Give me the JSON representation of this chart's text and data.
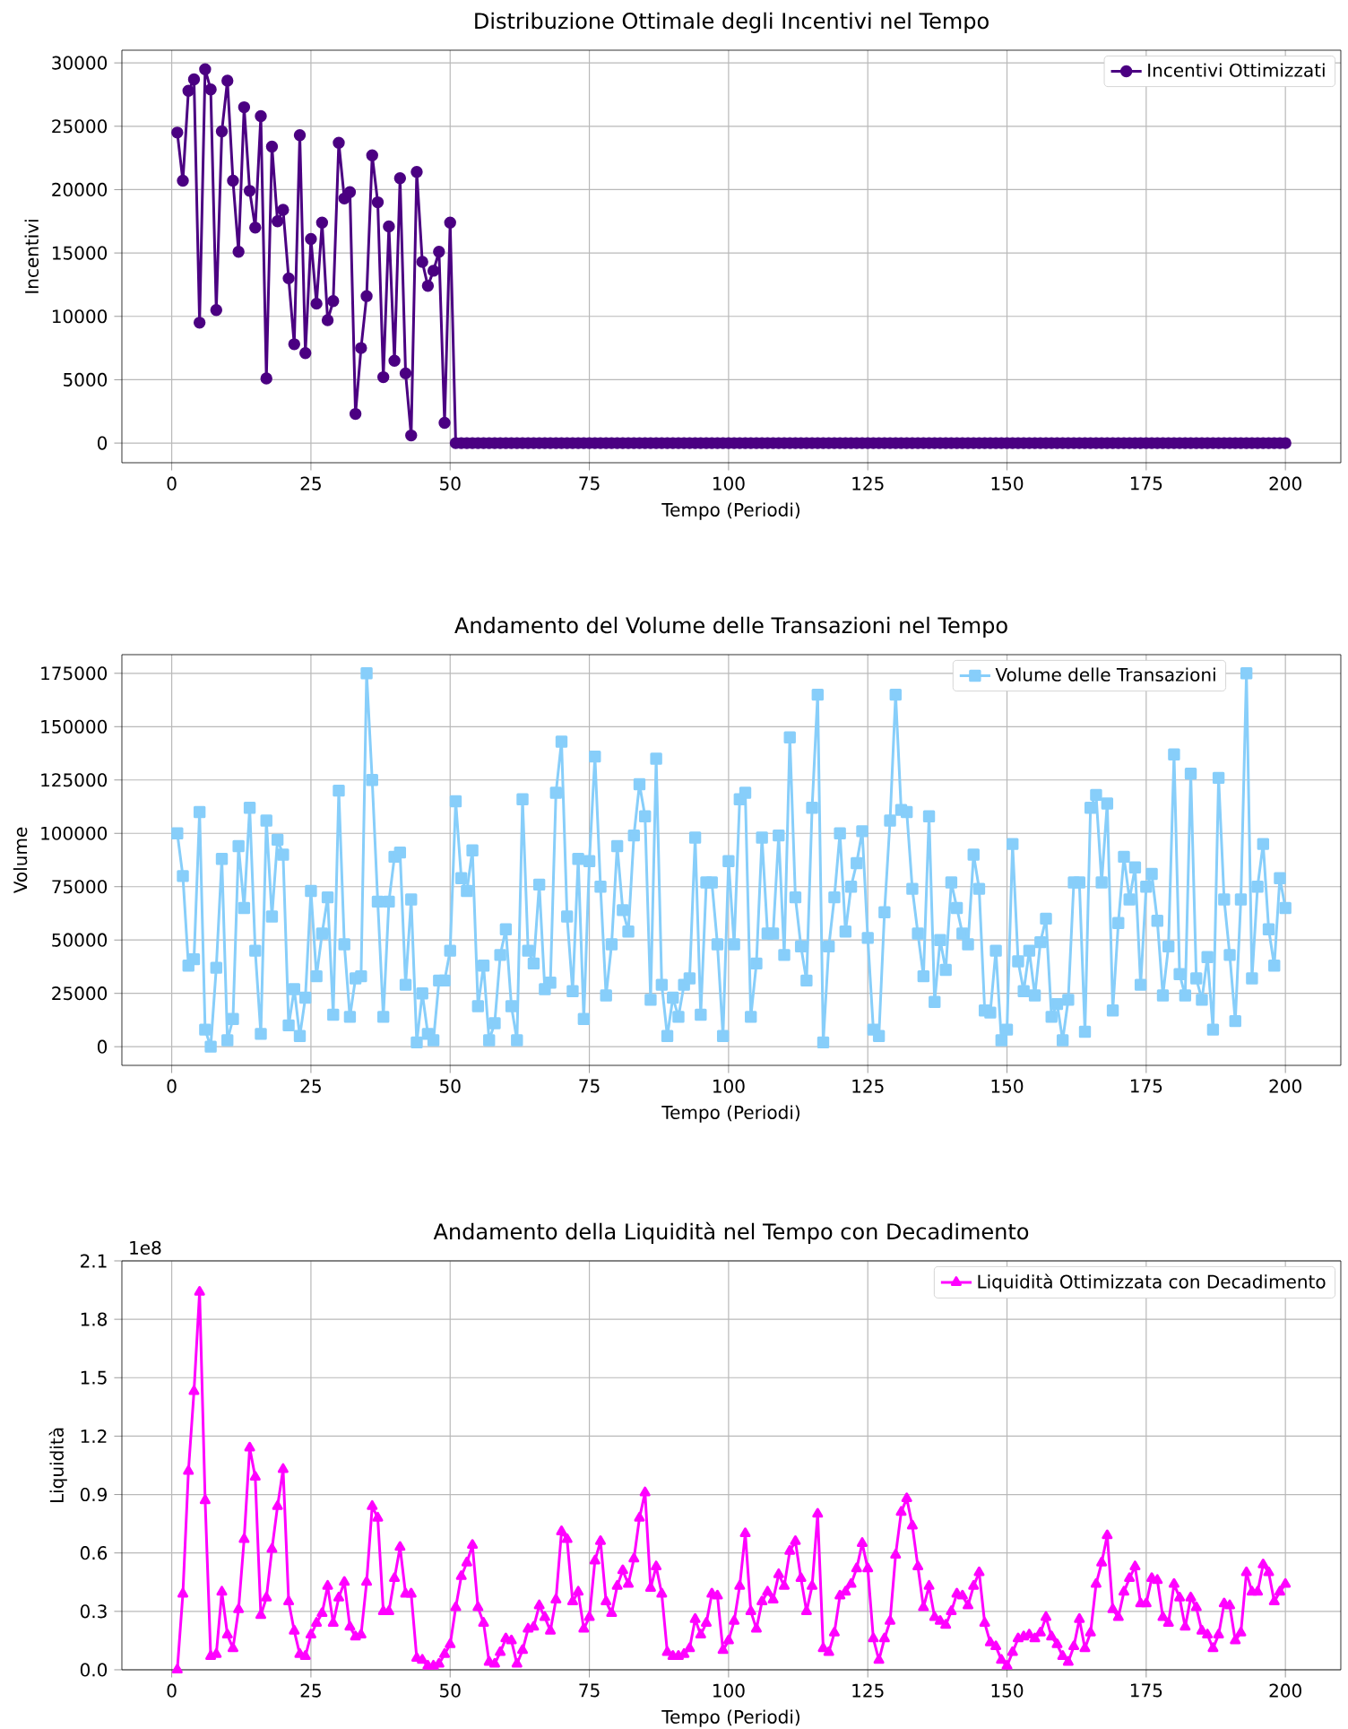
{
  "chart_data": [
    {
      "type": "line",
      "title": "Distribuzione Ottimale degli Incentivi nel Tempo",
      "xlabel": "Tempo (Periodi)",
      "ylabel": "Incentivi",
      "x": [
        1,
        2,
        3,
        4,
        5,
        6,
        7,
        8,
        9,
        10,
        11,
        12,
        13,
        14,
        15,
        16,
        17,
        18,
        19,
        20,
        21,
        22,
        23,
        24,
        25,
        26,
        27,
        28,
        29,
        30,
        31,
        32,
        33,
        34,
        35,
        36,
        37,
        38,
        39,
        40,
        41,
        42,
        43,
        44,
        45,
        46,
        47,
        48,
        49,
        50,
        51,
        52,
        53,
        54,
        55,
        56,
        57,
        58,
        59,
        60,
        61,
        62,
        63,
        64,
        65,
        66,
        67,
        68,
        69,
        70,
        71,
        72,
        73,
        74,
        75,
        76,
        77,
        78,
        79,
        80,
        81,
        82,
        83,
        84,
        85,
        86,
        87,
        88,
        89,
        90,
        91,
        92,
        93,
        94,
        95,
        96,
        97,
        98,
        99,
        100,
        101,
        102,
        103,
        104,
        105,
        106,
        107,
        108,
        109,
        110,
        111,
        112,
        113,
        114,
        115,
        116,
        117,
        118,
        119,
        120,
        121,
        122,
        123,
        124,
        125,
        126,
        127,
        128,
        129,
        130,
        131,
        132,
        133,
        134,
        135,
        136,
        137,
        138,
        139,
        140,
        141,
        142,
        143,
        144,
        145,
        146,
        147,
        148,
        149,
        150,
        151,
        152,
        153,
        154,
        155,
        156,
        157,
        158,
        159,
        160,
        161,
        162,
        163,
        164,
        165,
        166,
        167,
        168,
        169,
        170,
        171,
        172,
        173,
        174,
        175,
        176,
        177,
        178,
        179,
        180,
        181,
        182,
        183,
        184,
        185,
        186,
        187,
        188,
        189,
        190,
        191,
        192,
        193,
        194,
        195,
        196,
        197,
        198,
        199,
        200
      ],
      "series": [
        {
          "name": "Incentivi Ottimizzati",
          "color": "#4b0082",
          "values": [
            24500,
            20700,
            27800,
            28700,
            9500,
            29500,
            27900,
            10500,
            24600,
            28600,
            20700,
            15100,
            26500,
            19900,
            17000,
            25800,
            5100,
            23400,
            17500,
            18400,
            13000,
            7800,
            24300,
            7100,
            16100,
            11000,
            17400,
            9700,
            11200,
            23700,
            19300,
            19800,
            2300,
            7500,
            11600,
            22700,
            19000,
            5200,
            17100,
            6500,
            20900,
            5500,
            600,
            21400,
            14300,
            12400,
            13600,
            15100,
            1600,
            17400,
            0,
            0,
            0,
            0,
            0,
            0,
            0,
            0,
            0,
            0,
            0,
            0,
            0,
            0,
            0,
            0,
            0,
            0,
            0,
            0,
            0,
            0,
            0,
            0,
            0,
            0,
            0,
            0,
            0,
            0,
            0,
            0,
            0,
            0,
            0,
            0,
            0,
            0,
            0,
            0,
            0,
            0,
            0,
            0,
            0,
            0,
            0,
            0,
            0,
            0,
            0,
            0,
            0,
            0,
            0,
            0,
            0,
            0,
            0,
            0,
            0,
            0,
            0,
            0,
            0,
            0,
            0,
            0,
            0,
            0,
            0,
            0,
            0,
            0,
            0,
            0,
            0,
            0,
            0,
            0,
            0,
            0,
            0,
            0,
            0,
            0,
            0,
            0,
            0,
            0,
            0,
            0,
            0,
            0,
            0,
            0,
            0,
            0,
            0,
            0,
            0,
            0,
            0,
            0,
            0,
            0,
            0,
            0,
            0,
            0,
            0,
            0,
            0,
            0,
            0,
            0,
            0,
            0,
            0,
            0,
            0,
            0,
            0,
            0,
            0,
            0,
            0,
            0,
            0,
            0,
            0,
            0,
            0,
            0,
            0,
            0,
            0,
            0,
            0,
            0,
            0,
            0,
            0,
            0,
            0,
            0,
            0,
            0,
            0,
            0
          ]
        }
      ],
      "xlim": [
        -8.95,
        209.95
      ],
      "xticks": [
        0,
        25,
        50,
        75,
        100,
        125,
        150,
        175,
        200
      ],
      "ylim": [
        -1550,
        31000
      ],
      "yticks": [
        0,
        5000,
        10000,
        15000,
        20000,
        25000,
        30000
      ],
      "grid": true,
      "legend": "top right",
      "marker": "circle",
      "line_style": "solid"
    },
    {
      "type": "line",
      "title": "Andamento del Volume delle Transazioni nel Tempo",
      "xlabel": "Tempo (Periodi)",
      "ylabel": "Volume",
      "x": [
        1,
        2,
        3,
        4,
        5,
        6,
        7,
        8,
        9,
        10,
        11,
        12,
        13,
        14,
        15,
        16,
        17,
        18,
        19,
        20,
        21,
        22,
        23,
        24,
        25,
        26,
        27,
        28,
        29,
        30,
        31,
        32,
        33,
        34,
        35,
        36,
        37,
        38,
        39,
        40,
        41,
        42,
        43,
        44,
        45,
        46,
        47,
        48,
        49,
        50,
        51,
        52,
        53,
        54,
        55,
        56,
        57,
        58,
        59,
        60,
        61,
        62,
        63,
        64,
        65,
        66,
        67,
        68,
        69,
        70,
        71,
        72,
        73,
        74,
        75,
        76,
        77,
        78,
        79,
        80,
        81,
        82,
        83,
        84,
        85,
        86,
        87,
        88,
        89,
        90,
        91,
        92,
        93,
        94,
        95,
        96,
        97,
        98,
        99,
        100,
        101,
        102,
        103,
        104,
        105,
        106,
        107,
        108,
        109,
        110,
        111,
        112,
        113,
        114,
        115,
        116,
        117,
        118,
        119,
        120,
        121,
        122,
        123,
        124,
        125,
        126,
        127,
        128,
        129,
        130,
        131,
        132,
        133,
        134,
        135,
        136,
        137,
        138,
        139,
        140,
        141,
        142,
        143,
        144,
        145,
        146,
        147,
        148,
        149,
        150,
        151,
        152,
        153,
        154,
        155,
        156,
        157,
        158,
        159,
        160,
        161,
        162,
        163,
        164,
        165,
        166,
        167,
        168,
        169,
        170,
        171,
        172,
        173,
        174,
        175,
        176,
        177,
        178,
        179,
        180,
        181,
        182,
        183,
        184,
        185,
        186,
        187,
        188,
        189,
        190,
        191,
        192,
        193,
        194,
        195,
        196,
        197,
        198,
        199,
        200
      ],
      "series": [
        {
          "name": "Volume delle Transazioni",
          "color": "#87cefa",
          "values": [
            100000,
            80000,
            38000,
            41000,
            110000,
            8000,
            0,
            37000,
            88000,
            3000,
            13000,
            94000,
            65000,
            112000,
            45000,
            6000,
            106000,
            61000,
            97000,
            90000,
            10000,
            27000,
            5000,
            23000,
            73000,
            33000,
            53000,
            70000,
            15000,
            120000,
            48000,
            14000,
            32000,
            33000,
            175000,
            125000,
            68000,
            14000,
            68000,
            89000,
            91000,
            29000,
            69000,
            2000,
            25000,
            6000,
            3000,
            31000,
            31000,
            45000,
            115000,
            79000,
            73000,
            92000,
            19000,
            38000,
            3000,
            11000,
            43000,
            55000,
            19000,
            3000,
            116000,
            45000,
            39000,
            76000,
            27000,
            30000,
            119000,
            143000,
            61000,
            26000,
            88000,
            13000,
            87000,
            136000,
            75000,
            24000,
            48000,
            94000,
            64000,
            54000,
            99000,
            123000,
            108000,
            22000,
            135000,
            29000,
            5000,
            23000,
            14000,
            29000,
            32000,
            98000,
            15000,
            77000,
            77000,
            48000,
            5000,
            87000,
            48000,
            116000,
            119000,
            14000,
            39000,
            98000,
            53000,
            53000,
            99000,
            43000,
            145000,
            70000,
            47000,
            31000,
            112000,
            165000,
            2000,
            47000,
            70000,
            100000,
            54000,
            75000,
            86000,
            101000,
            51000,
            8000,
            5000,
            63000,
            106000,
            165000,
            111000,
            110000,
            74000,
            53000,
            33000,
            108000,
            21000,
            50000,
            36000,
            77000,
            65000,
            53000,
            48000,
            90000,
            74000,
            17000,
            16000,
            45000,
            3000,
            8000,
            95000,
            40000,
            26000,
            45000,
            24000,
            49000,
            60000,
            14000,
            20000,
            3000,
            22000,
            77000,
            77000,
            7000,
            112000,
            118000,
            77000,
            114000,
            17000,
            58000,
            89000,
            69000,
            84000,
            29000,
            75000,
            81000,
            59000,
            24000,
            47000,
            137000,
            34000,
            24000,
            128000,
            32000,
            22000,
            42000,
            8000,
            126000,
            69000,
            43000,
            12000,
            69000,
            175000,
            32000,
            75000,
            95000,
            55000,
            38000,
            79000,
            65000
          ]
        }
      ],
      "xlim": [
        -8.95,
        209.95
      ],
      "xticks": [
        0,
        25,
        50,
        75,
        100,
        125,
        150,
        175,
        200
      ],
      "ylim": [
        -8750,
        183750
      ],
      "yticks": [
        0,
        25000,
        50000,
        75000,
        100000,
        125000,
        150000,
        175000
      ],
      "grid": true,
      "legend": "top right",
      "marker": "square",
      "line_style": "solid"
    },
    {
      "type": "line",
      "title": "Andamento della Liquidità nel Tempo con Decadimento",
      "xlabel": "Tempo (Periodi)",
      "ylabel": "Liquidità",
      "annotations": [
        "1e8"
      ],
      "x": [
        1,
        2,
        3,
        4,
        5,
        6,
        7,
        8,
        9,
        10,
        11,
        12,
        13,
        14,
        15,
        16,
        17,
        18,
        19,
        20,
        21,
        22,
        23,
        24,
        25,
        26,
        27,
        28,
        29,
        30,
        31,
        32,
        33,
        34,
        35,
        36,
        37,
        38,
        39,
        40,
        41,
        42,
        43,
        44,
        45,
        46,
        47,
        48,
        49,
        50,
        51,
        52,
        53,
        54,
        55,
        56,
        57,
        58,
        59,
        60,
        61,
        62,
        63,
        64,
        65,
        66,
        67,
        68,
        69,
        70,
        71,
        72,
        73,
        74,
        75,
        76,
        77,
        78,
        79,
        80,
        81,
        82,
        83,
        84,
        85,
        86,
        87,
        88,
        89,
        90,
        91,
        92,
        93,
        94,
        95,
        96,
        97,
        98,
        99,
        100,
        101,
        102,
        103,
        104,
        105,
        106,
        107,
        108,
        109,
        110,
        111,
        112,
        113,
        114,
        115,
        116,
        117,
        118,
        119,
        120,
        121,
        122,
        123,
        124,
        125,
        126,
        127,
        128,
        129,
        130,
        131,
        132,
        133,
        134,
        135,
        136,
        137,
        138,
        139,
        140,
        141,
        142,
        143,
        144,
        145,
        146,
        147,
        148,
        149,
        150,
        151,
        152,
        153,
        154,
        155,
        156,
        157,
        158,
        159,
        160,
        161,
        162,
        163,
        164,
        165,
        166,
        167,
        168,
        169,
        170,
        171,
        172,
        173,
        174,
        175,
        176,
        177,
        178,
        179,
        180,
        181,
        182,
        183,
        184,
        185,
        186,
        187,
        188,
        189,
        190,
        191,
        192,
        193,
        194,
        195,
        196,
        197,
        198,
        199,
        200
      ],
      "series": [
        {
          "name": "Liquidità Ottimizzata con Decadimento",
          "color": "#ff00ff",
          "values": [
            0,
            0.39,
            1.02,
            1.43,
            1.94,
            0.87,
            0.07,
            0.08,
            0.4,
            0.18,
            0.11,
            0.31,
            0.67,
            1.14,
            0.99,
            0.28,
            0.37,
            0.62,
            0.84,
            1.03,
            0.35,
            0.2,
            0.08,
            0.07,
            0.18,
            0.24,
            0.29,
            0.43,
            0.24,
            0.37,
            0.45,
            0.22,
            0.17,
            0.18,
            0.45,
            0.84,
            0.78,
            0.3,
            0.3,
            0.47,
            0.63,
            0.39,
            0.39,
            0.06,
            0.05,
            0.02,
            0.02,
            0.03,
            0.08,
            0.13,
            0.32,
            0.48,
            0.55,
            0.64,
            0.32,
            0.24,
            0.04,
            0.03,
            0.09,
            0.16,
            0.15,
            0.03,
            0.1,
            0.21,
            0.22,
            0.33,
            0.27,
            0.2,
            0.36,
            0.71,
            0.67,
            0.35,
            0.4,
            0.21,
            0.27,
            0.56,
            0.66,
            0.35,
            0.29,
            0.43,
            0.51,
            0.44,
            0.57,
            0.78,
            0.91,
            0.42,
            0.53,
            0.39,
            0.09,
            0.07,
            0.07,
            0.08,
            0.11,
            0.26,
            0.18,
            0.24,
            0.39,
            0.38,
            0.1,
            0.15,
            0.25,
            0.43,
            0.7,
            0.3,
            0.21,
            0.35,
            0.4,
            0.36,
            0.49,
            0.43,
            0.61,
            0.66,
            0.47,
            0.3,
            0.43,
            0.8,
            0.11,
            0.09,
            0.19,
            0.38,
            0.4,
            0.44,
            0.52,
            0.65,
            0.52,
            0.16,
            0.05,
            0.16,
            0.25,
            0.59,
            0.81,
            0.88,
            0.74,
            0.53,
            0.32,
            0.43,
            0.27,
            0.25,
            0.23,
            0.3,
            0.39,
            0.38,
            0.33,
            0.43,
            0.5,
            0.24,
            0.14,
            0.12,
            0.05,
            0.02,
            0.09,
            0.16,
            0.17,
            0.18,
            0.16,
            0.19,
            0.27,
            0.17,
            0.13,
            0.07,
            0.04,
            0.12,
            0.26,
            0.11,
            0.19,
            0.44,
            0.55,
            0.69,
            0.31,
            0.27,
            0.4,
            0.47,
            0.53,
            0.34,
            0.34,
            0.47,
            0.46,
            0.27,
            0.24,
            0.44,
            0.37,
            0.22,
            0.37,
            0.32,
            0.2,
            0.18,
            0.11,
            0.18,
            0.34,
            0.33,
            0.15,
            0.19,
            0.5,
            0.4,
            0.4,
            0.54,
            0.5,
            0.35,
            0.4,
            0.44
          ]
        }
      ],
      "xlim": [
        -8.95,
        209.95
      ],
      "xticks": [
        0,
        25,
        50,
        75,
        100,
        125,
        150,
        175,
        200
      ],
      "ylim": [
        0,
        2.1
      ],
      "yticks": [
        {
          "value": 0,
          "label": "0.0"
        },
        0.3,
        0.6,
        0.9,
        1.2,
        1.5,
        1.8,
        2.1
      ],
      "grid": true,
      "legend": "top right",
      "marker": "triangle",
      "line_style": "solid"
    }
  ]
}
